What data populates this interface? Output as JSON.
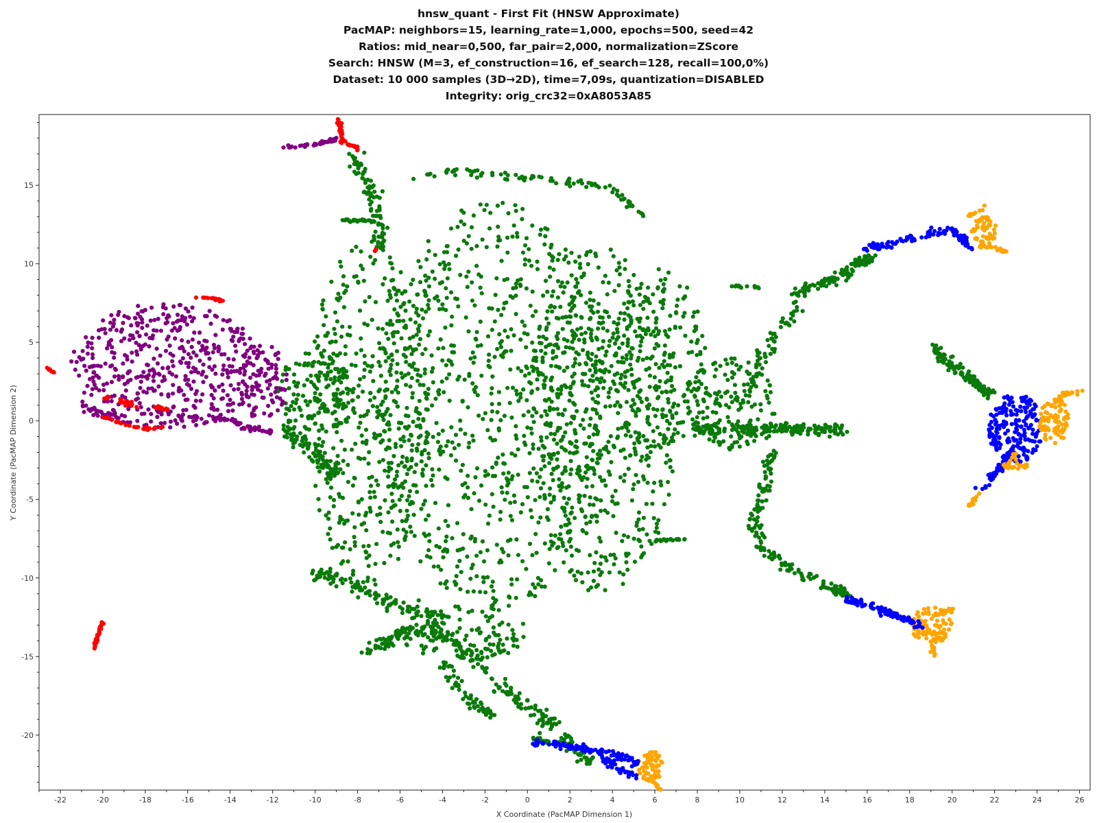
{
  "chart_data": {
    "type": "scatter",
    "title_lines": [
      "hnsw_quant - First Fit (HNSW Approximate)",
      "PacMAP: neighbors=15, learning_rate=1,000, epochs=500, seed=42",
      "Ratios: mid_near=0,500, far_pair=2,000, normalization=ZScore",
      "Search: HNSW (M=3, ef_construction=16, ef_search=128, recall=100,0%)",
      "Dataset: 10 000 samples (3D→2D), time=7,09s, quantization=DISABLED",
      "Integrity: orig_crc32=0xA8053A85"
    ],
    "xlabel": "X Coordinate (PacMAP Dimension 1)",
    "ylabel": "Y Coordinate (PacMAP Dimension 2)",
    "xlim": [
      -23,
      26.5
    ],
    "ylim": [
      -23.5,
      19.5
    ],
    "xticks": [
      -22,
      -20,
      -18,
      -16,
      -14,
      -12,
      -10,
      -8,
      -6,
      -4,
      -2,
      0,
      2,
      4,
      6,
      8,
      10,
      12,
      14,
      16,
      18,
      20,
      22,
      24,
      26
    ],
    "yticks": [
      15,
      10,
      5,
      0,
      -5,
      -10,
      -15,
      -20
    ],
    "grid": false,
    "legend": "none",
    "colors": {
      "green": "#0b7a0b",
      "purple": "#800080",
      "red": "#ff0000",
      "blue": "#0000ff",
      "orange": "#ffa500"
    },
    "regions": [
      {
        "color": "green",
        "shape": "ellipse",
        "cx": -1.5,
        "cy": 1,
        "rx": 5.5,
        "ry": 13,
        "n": 900
      },
      {
        "color": "green",
        "shape": "ellipse",
        "cx": 3.5,
        "cy": 0,
        "rx": 3.5,
        "ry": 11,
        "n": 550
      },
      {
        "color": "green",
        "shape": "ellipse",
        "cx": -7.5,
        "cy": 0.5,
        "rx": 2.8,
        "ry": 11,
        "n": 450
      },
      {
        "color": "green",
        "shape": "ellipse",
        "cx": 6.2,
        "cy": 4,
        "rx": 2.2,
        "ry": 6,
        "n": 200
      },
      {
        "color": "green",
        "shape": "ellipse",
        "cx": 9.5,
        "cy": 1,
        "rx": 2.2,
        "ry": 3,
        "n": 160
      },
      {
        "color": "green",
        "shape": "ellipse",
        "cx": -10,
        "cy": 1.5,
        "rx": 1.8,
        "ry": 3,
        "n": 150
      },
      {
        "color": "green",
        "shape": "ellipse",
        "cx": -3,
        "cy": -13.5,
        "rx": 3,
        "ry": 1.8,
        "n": 120
      },
      {
        "color": "purple",
        "shape": "ellipse",
        "cx": -17,
        "cy": 3.5,
        "rx": 4.5,
        "ry": 4,
        "n": 480
      },
      {
        "color": "purple",
        "shape": "ellipse",
        "cx": -12.5,
        "cy": 2.5,
        "rx": 1.2,
        "ry": 2.5,
        "n": 90
      },
      {
        "color": "blue",
        "shape": "ellipse",
        "cx": 23,
        "cy": -0.5,
        "rx": 1.3,
        "ry": 2.2,
        "n": 200
      },
      {
        "color": "orange",
        "shape": "ellipse",
        "cx": 24.8,
        "cy": 0,
        "rx": 0.7,
        "ry": 1.5,
        "n": 80
      },
      {
        "color": "orange",
        "shape": "ellipse",
        "cx": 19,
        "cy": -13,
        "rx": 1,
        "ry": 1.2,
        "n": 90
      },
      {
        "color": "orange",
        "shape": "ellipse",
        "cx": 21.5,
        "cy": 12,
        "rx": 0.6,
        "ry": 1,
        "n": 60
      },
      {
        "color": "orange",
        "shape": "ellipse",
        "cx": 5.8,
        "cy": -22,
        "rx": 0.6,
        "ry": 1,
        "n": 60
      },
      {
        "color": "green",
        "shape": "path",
        "pts": [
          [
            -8.2,
            17
          ],
          [
            -7.5,
            15
          ],
          [
            -7,
            13
          ],
          [
            -6.8,
            11
          ]
        ],
        "spread": 0.35,
        "n": 90
      },
      {
        "color": "green",
        "shape": "path",
        "pts": [
          [
            -8.8,
            12.8
          ],
          [
            -7.2,
            12.7
          ]
        ],
        "spread": 0.12,
        "n": 25
      },
      {
        "color": "green",
        "shape": "path",
        "pts": [
          [
            -5,
            15.5
          ],
          [
            -3.5,
            16
          ],
          [
            -1,
            15.5
          ],
          [
            2,
            15.3
          ],
          [
            4,
            14.8
          ],
          [
            5.5,
            13
          ]
        ],
        "spread": 0.25,
        "n": 90
      },
      {
        "color": "green",
        "shape": "path",
        "pts": [
          [
            -4.5,
            -13
          ],
          [
            -3,
            -14.5
          ],
          [
            -1.5,
            -16.5
          ],
          [
            0.5,
            -18.8
          ],
          [
            2,
            -20.5
          ],
          [
            3,
            -21.8
          ]
        ],
        "spread": 0.45,
        "n": 170
      },
      {
        "color": "green",
        "shape": "path",
        "pts": [
          [
            -7.5,
            -14.8
          ],
          [
            -6,
            -13.5
          ],
          [
            -4.5,
            -13.5
          ]
        ],
        "spread": 0.45,
        "n": 70
      },
      {
        "color": "green",
        "shape": "path",
        "pts": [
          [
            -10.2,
            -9.5
          ],
          [
            -8,
            -10.5
          ],
          [
            -6,
            -11.8
          ],
          [
            -4,
            -12.5
          ]
        ],
        "spread": 0.45,
        "n": 120
      },
      {
        "color": "green",
        "shape": "path",
        "pts": [
          [
            -11.5,
            -0.5
          ],
          [
            -10,
            -2
          ],
          [
            -9,
            -3.5
          ]
        ],
        "spread": 0.45,
        "n": 90
      },
      {
        "color": "green",
        "shape": "path",
        "pts": [
          [
            8,
            -0.5
          ],
          [
            10,
            -0.5
          ],
          [
            12,
            -0.5
          ],
          [
            13,
            -0.5
          ],
          [
            14.8,
            -0.6
          ]
        ],
        "spread": 0.35,
        "n": 180
      },
      {
        "color": "green",
        "shape": "path",
        "pts": [
          [
            10,
            1
          ],
          [
            11,
            4
          ],
          [
            12,
            6
          ],
          [
            13,
            8
          ]
        ],
        "spread": 0.35,
        "n": 70
      },
      {
        "color": "green",
        "shape": "path",
        "pts": [
          [
            11.5,
            -2
          ],
          [
            11.2,
            -4
          ],
          [
            10.6,
            -6.5
          ],
          [
            11,
            -8
          ],
          [
            12.5,
            -9.5
          ],
          [
            14,
            -10.5
          ],
          [
            15,
            -11
          ]
        ],
        "spread": 0.28,
        "n": 160
      },
      {
        "color": "green",
        "shape": "path",
        "pts": [
          [
            12.5,
            8
          ],
          [
            13.5,
            8.6
          ],
          [
            14.8,
            9.2
          ],
          [
            15.7,
            10.2
          ],
          [
            16.2,
            10.3
          ]
        ],
        "spread": 0.35,
        "n": 110
      },
      {
        "color": "green",
        "shape": "path",
        "pts": [
          [
            19.2,
            4.6
          ],
          [
            20,
            3.5
          ],
          [
            21,
            2.5
          ],
          [
            21.8,
            1.6
          ]
        ],
        "spread": 0.3,
        "n": 130
      },
      {
        "color": "green",
        "shape": "path",
        "pts": [
          [
            6,
            -7.6
          ],
          [
            7.5,
            -7.5
          ]
        ],
        "spread": 0.1,
        "n": 20
      },
      {
        "color": "green",
        "shape": "path",
        "pts": [
          [
            9.5,
            8.6
          ],
          [
            11,
            8.5
          ]
        ],
        "spread": 0.08,
        "n": 12
      },
      {
        "color": "green",
        "shape": "path",
        "pts": [
          [
            -4,
            -15.5
          ],
          [
            -3,
            -17.5
          ],
          [
            -1.5,
            -19
          ]
        ],
        "spread": 0.35,
        "n": 60
      },
      {
        "color": "green",
        "shape": "path",
        "pts": [
          [
            0.2,
            -20.2
          ],
          [
            1.3,
            -20.5
          ],
          [
            1.8,
            -20.6
          ]
        ],
        "spread": 0.12,
        "n": 30
      },
      {
        "color": "green",
        "shape": "path",
        "pts": [
          [
            14.5,
            -10.7
          ],
          [
            15.1,
            -11.1
          ]
        ],
        "spread": 0.1,
        "n": 12
      },
      {
        "color": "blue",
        "shape": "path",
        "pts": [
          [
            0.3,
            -20.4
          ],
          [
            2,
            -20.7
          ],
          [
            4,
            -21.2
          ],
          [
            5.2,
            -21.8
          ]
        ],
        "spread": 0.22,
        "n": 110
      },
      {
        "color": "blue",
        "shape": "path",
        "pts": [
          [
            3.5,
            -21.4
          ],
          [
            4.5,
            -22.2
          ],
          [
            5.2,
            -22.8
          ]
        ],
        "spread": 0.25,
        "n": 40
      },
      {
        "color": "blue",
        "shape": "path",
        "pts": [
          [
            15,
            -11.3
          ],
          [
            16.5,
            -12
          ],
          [
            17.5,
            -12.5
          ],
          [
            18.5,
            -13
          ]
        ],
        "spread": 0.22,
        "n": 100
      },
      {
        "color": "blue",
        "shape": "path",
        "pts": [
          [
            16,
            11
          ],
          [
            17,
            11.2
          ],
          [
            18.5,
            11.8
          ],
          [
            20,
            12.2
          ],
          [
            20.8,
            11
          ]
        ],
        "spread": 0.22,
        "n": 110
      },
      {
        "color": "blue",
        "shape": "path",
        "pts": [
          [
            23,
            -1.5
          ],
          [
            22.2,
            -3
          ],
          [
            21.3,
            -4.5
          ]
        ],
        "spread": 0.22,
        "n": 50
      },
      {
        "color": "orange",
        "shape": "path",
        "pts": [
          [
            21.3,
            -4.6
          ],
          [
            20.8,
            -5.4
          ]
        ],
        "spread": 0.1,
        "n": 15
      },
      {
        "color": "orange",
        "shape": "path",
        "pts": [
          [
            23,
            -2
          ],
          [
            22.5,
            -2.9
          ],
          [
            23.5,
            -2.8
          ]
        ],
        "spread": 0.2,
        "n": 25
      },
      {
        "color": "orange",
        "shape": "path",
        "pts": [
          [
            24.5,
            1
          ],
          [
            25.2,
            1.6
          ],
          [
            26,
            1.9
          ]
        ],
        "spread": 0.15,
        "n": 25
      },
      {
        "color": "orange",
        "shape": "path",
        "pts": [
          [
            20.8,
            13
          ],
          [
            21.5,
            13.6
          ]
        ],
        "spread": 0.12,
        "n": 12
      },
      {
        "color": "orange",
        "shape": "path",
        "pts": [
          [
            21.5,
            11.2
          ],
          [
            22.5,
            10.8
          ]
        ],
        "spread": 0.15,
        "n": 15
      },
      {
        "color": "orange",
        "shape": "path",
        "pts": [
          [
            19,
            -14
          ],
          [
            19.2,
            -15
          ]
        ],
        "spread": 0.12,
        "n": 12
      },
      {
        "color": "orange",
        "shape": "path",
        "pts": [
          [
            19.5,
            -12.2
          ],
          [
            20,
            -12
          ]
        ],
        "spread": 0.12,
        "n": 12
      },
      {
        "color": "orange",
        "shape": "path",
        "pts": [
          [
            6,
            -23
          ],
          [
            6.3,
            -23.5
          ]
        ],
        "spread": 0.08,
        "n": 10
      },
      {
        "color": "purple",
        "shape": "path",
        "pts": [
          [
            -11.5,
            17.4
          ],
          [
            -10,
            17.6
          ],
          [
            -9,
            17.9
          ]
        ],
        "spread": 0.1,
        "n": 40
      },
      {
        "color": "purple",
        "shape": "path",
        "pts": [
          [
            -16,
            0.2
          ],
          [
            -14,
            0
          ],
          [
            -13,
            -0.5
          ],
          [
            -12,
            -0.8
          ]
        ],
        "spread": 0.25,
        "n": 60
      },
      {
        "color": "purple",
        "shape": "path",
        "pts": [
          [
            -21,
            1
          ],
          [
            -20,
            0.3
          ],
          [
            -19,
            0
          ]
        ],
        "spread": 0.25,
        "n": 35
      },
      {
        "color": "red",
        "shape": "path",
        "pts": [
          [
            -8.9,
            19.2
          ],
          [
            -8.8,
            18.5
          ],
          [
            -8.7,
            17.8
          ]
        ],
        "spread": 0.06,
        "n": 40
      },
      {
        "color": "red",
        "shape": "path",
        "pts": [
          [
            -8.8,
            17.8
          ],
          [
            -8.2,
            17.5
          ],
          [
            -8,
            17.3
          ]
        ],
        "spread": 0.08,
        "n": 20
      },
      {
        "color": "red",
        "shape": "path",
        "pts": [
          [
            -20.4,
            -14.5
          ],
          [
            -20.2,
            -13.5
          ],
          [
            -20,
            -12.8
          ]
        ],
        "spread": 0.05,
        "n": 40
      },
      {
        "color": "red",
        "shape": "path",
        "pts": [
          [
            -15.6,
            7.9
          ],
          [
            -14.8,
            7.8
          ],
          [
            -14.3,
            7.6
          ]
        ],
        "spread": 0.06,
        "n": 25
      },
      {
        "color": "red",
        "shape": "path",
        "pts": [
          [
            -22.6,
            3.4
          ],
          [
            -22.3,
            3
          ]
        ],
        "spread": 0.06,
        "n": 10
      },
      {
        "color": "red",
        "shape": "path",
        "pts": [
          [
            -20,
            1.5
          ],
          [
            -19,
            1.2
          ],
          [
            -18.3,
            0.9
          ]
        ],
        "spread": 0.12,
        "n": 25
      },
      {
        "color": "red",
        "shape": "path",
        "pts": [
          [
            -17.5,
            0.9
          ],
          [
            -17,
            0.7
          ]
        ],
        "spread": 0.1,
        "n": 12
      },
      {
        "color": "red",
        "shape": "path",
        "pts": [
          [
            -20,
            0.3
          ],
          [
            -19,
            -0.2
          ],
          [
            -18,
            -0.5
          ],
          [
            -17.2,
            -0.4
          ]
        ],
        "spread": 0.08,
        "n": 30
      },
      {
        "color": "red",
        "shape": "path",
        "pts": [
          [
            -7.2,
            10.8
          ],
          [
            -7.1,
            11
          ]
        ],
        "spread": 0.05,
        "n": 4
      }
    ]
  }
}
